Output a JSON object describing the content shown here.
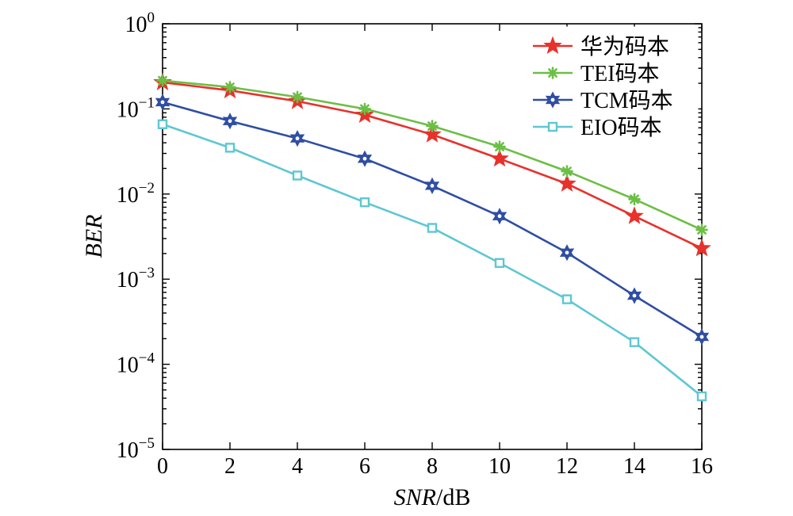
{
  "chart_data": {
    "type": "line",
    "title": "",
    "xlabel": {
      "italic": "SNR",
      "unit": "/dB"
    },
    "ylabel": "BER",
    "x": [
      0,
      2,
      4,
      6,
      8,
      10,
      12,
      14,
      16
    ],
    "xlim": [
      0,
      16
    ],
    "x_ticks": [
      0,
      2,
      4,
      6,
      8,
      10,
      12,
      14,
      16
    ],
    "y_scale": "log",
    "ylim": [
      1e-05,
      1
    ],
    "y_ticks": [
      {
        "value": 1,
        "base": "10",
        "exp": "0"
      },
      {
        "value": 0.1,
        "base": "10",
        "exp": "−1"
      },
      {
        "value": 0.01,
        "base": "10",
        "exp": "−2"
      },
      {
        "value": 0.001,
        "base": "10",
        "exp": "−3"
      },
      {
        "value": 0.0001,
        "base": "10",
        "exp": "−4"
      },
      {
        "value": 1e-05,
        "base": "10",
        "exp": "−5"
      }
    ],
    "grid": false,
    "legend_position": "top-right",
    "series": [
      {
        "name": "华为码本",
        "color": "#e8312b",
        "marker": "star",
        "values": [
          0.205,
          0.165,
          0.123,
          0.085,
          0.05,
          0.026,
          0.0132,
          0.0055,
          0.0023
        ]
      },
      {
        "name": "TEI码本",
        "color": "#6bbf45",
        "marker": "asterisk",
        "values": [
          0.215,
          0.18,
          0.138,
          0.1,
          0.063,
          0.036,
          0.0185,
          0.0087,
          0.0038
        ]
      },
      {
        "name": "TCM码本",
        "color": "#2f4ea3",
        "marker": "hexagram",
        "values": [
          0.12,
          0.072,
          0.045,
          0.026,
          0.0125,
          0.0055,
          0.00205,
          0.00064,
          0.00021
        ]
      },
      {
        "name": "EIO码本",
        "color": "#5ec7d3",
        "marker": "square",
        "values": [
          0.066,
          0.035,
          0.0165,
          0.008,
          0.004,
          0.00155,
          0.00058,
          0.000182,
          4.2e-05
        ]
      }
    ]
  }
}
